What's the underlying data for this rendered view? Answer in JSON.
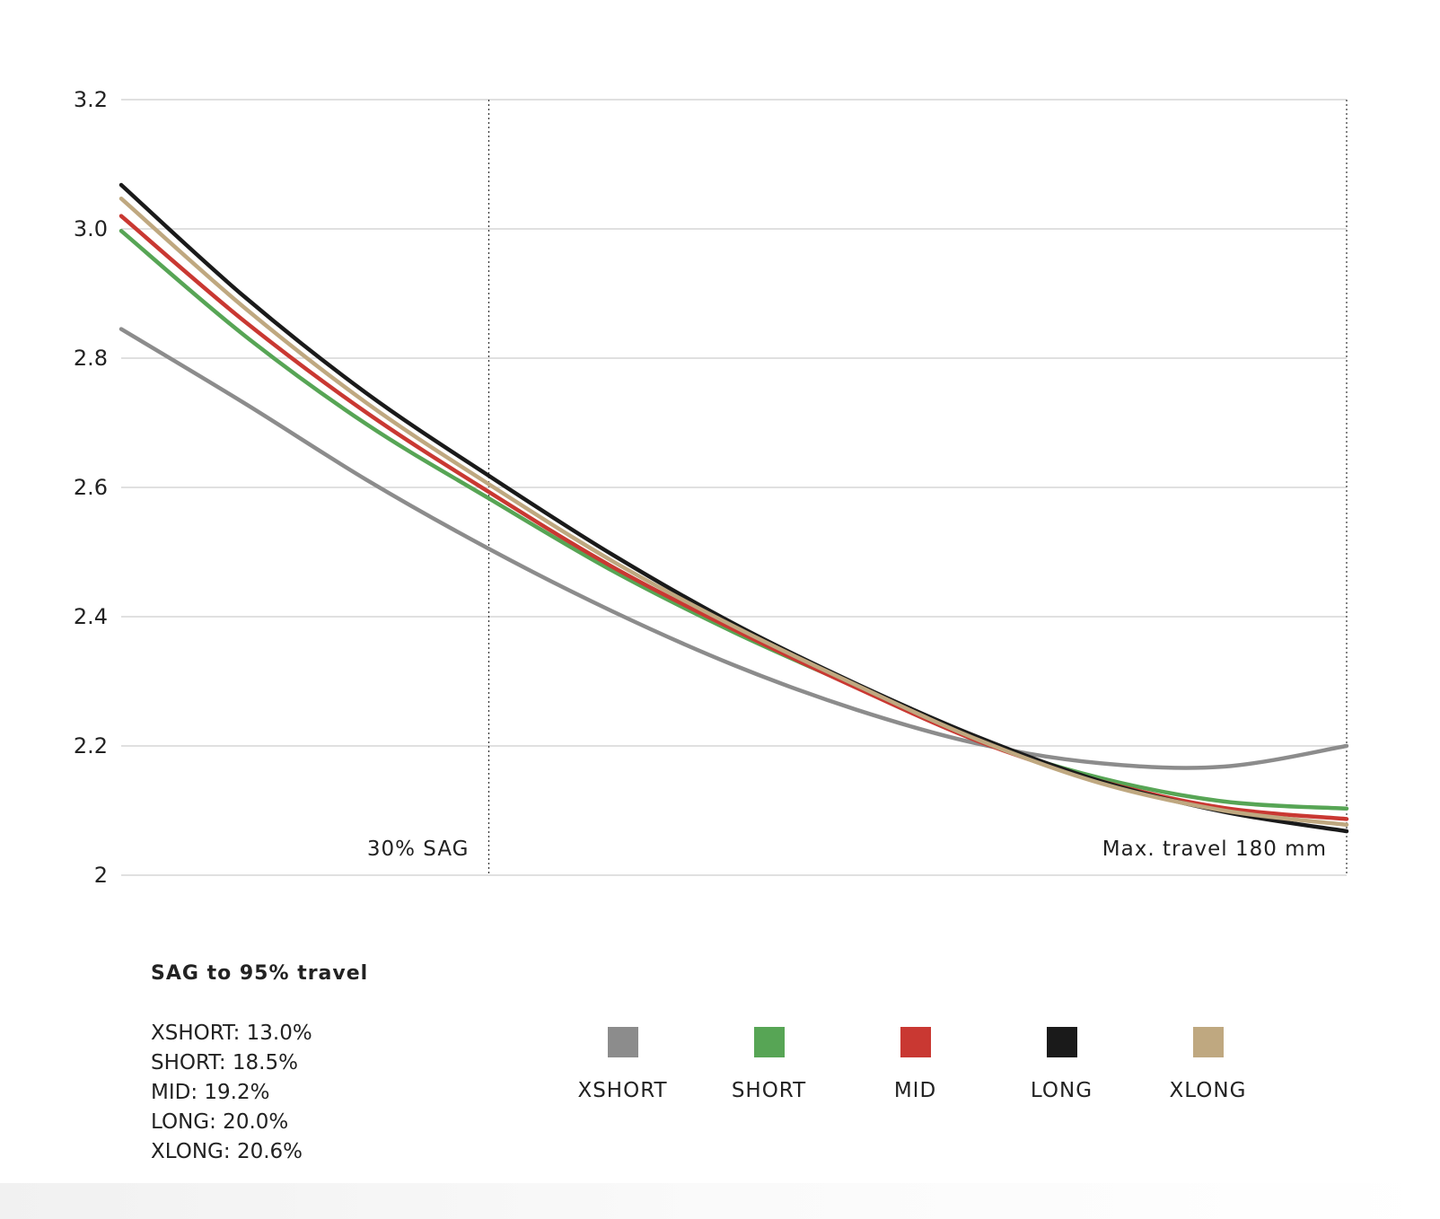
{
  "chart_data": {
    "type": "line",
    "title": "",
    "xlabel": "",
    "ylabel": "",
    "x_unit": "% travel",
    "xlim": [
      0,
      100
    ],
    "ylim": [
      2,
      3.2
    ],
    "y_ticks": [
      "2",
      "2.2",
      "2.4",
      "2.6",
      "2.8",
      "3.0",
      "3.2"
    ],
    "y_tick_values": [
      2.0,
      2.2,
      2.4,
      2.6,
      2.8,
      3.0,
      3.2
    ],
    "grid": true,
    "annotations": [
      {
        "text": "30% SAG",
        "x": 30
      },
      {
        "text": "Max. travel 180 mm",
        "x": 100
      }
    ],
    "x": [
      0,
      10,
      20,
      30,
      40,
      50,
      60,
      70,
      80,
      90,
      100
    ],
    "series": [
      {
        "name": "XSHORT",
        "color": "#8c8c8c",
        "values": [
          2.845,
          2.731,
          2.612,
          2.505,
          2.409,
          2.325,
          2.256,
          2.203,
          2.173,
          2.168,
          2.2
        ]
      },
      {
        "name": "SHORT",
        "color": "#57a555",
        "values": [
          2.997,
          2.836,
          2.698,
          2.583,
          2.472,
          2.376,
          2.291,
          2.208,
          2.15,
          2.114,
          2.103
        ]
      },
      {
        "name": "MID",
        "color": "#c93832",
        "values": [
          3.02,
          2.858,
          2.716,
          2.593,
          2.478,
          2.38,
          2.29,
          2.207,
          2.145,
          2.104,
          2.087
        ]
      },
      {
        "name": "LONG",
        "color": "#1a1a1a",
        "values": [
          3.068,
          2.896,
          2.746,
          2.618,
          2.497,
          2.389,
          2.296,
          2.213,
          2.145,
          2.098,
          2.068
        ]
      },
      {
        "name": "XLONG",
        "color": "#bfa880",
        "values": [
          3.047,
          2.879,
          2.731,
          2.605,
          2.487,
          2.385,
          2.294,
          2.209,
          2.142,
          2.1,
          2.078
        ]
      }
    ]
  },
  "sag_panel": {
    "title": "SAG to 95% travel",
    "items": [
      "XSHORT: 13.0%",
      "SHORT: 18.5%",
      "MID: 19.2%",
      "LONG: 20.0%",
      "XLONG: 20.6%"
    ]
  },
  "legend": [
    {
      "label": "XSHORT",
      "color": "#8c8c8c"
    },
    {
      "label": "SHORT",
      "color": "#57a555"
    },
    {
      "label": "MID",
      "color": "#c93832"
    },
    {
      "label": "LONG",
      "color": "#1a1a1a"
    },
    {
      "label": "XLONG",
      "color": "#bfa880"
    }
  ]
}
